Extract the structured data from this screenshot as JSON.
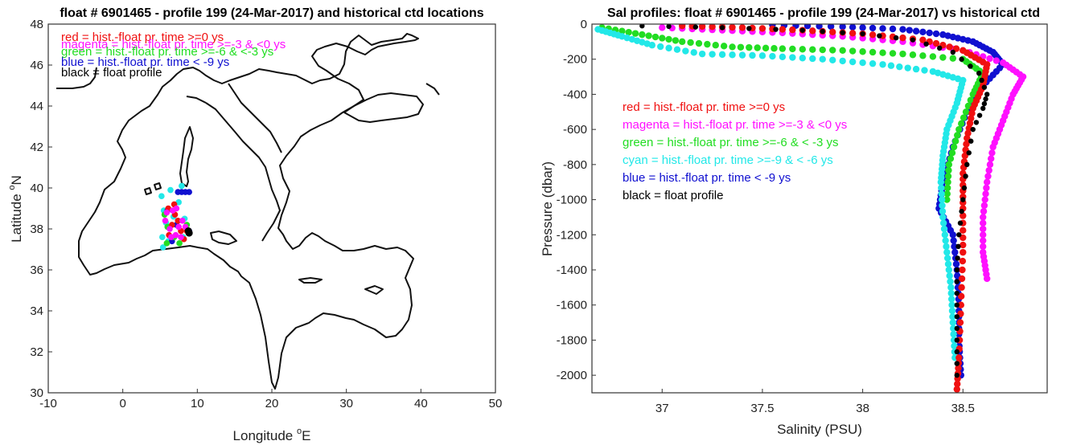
{
  "colors": {
    "red": "#f01010",
    "magenta": "#ff10ff",
    "green": "#22dd22",
    "cyan": "#22e8e8",
    "blue": "#1010d0",
    "black": "#000000"
  },
  "chart_data": [
    {
      "type": "scatter",
      "title": "float # 6901465 - profile 199 (24-Mar-2017) and historical ctd locations",
      "xlabel": "Longitude",
      "xlabel_sup": "o",
      "xlabel_tail": "E",
      "ylabel": "Latitude",
      "ylabel_sup": "o",
      "ylabel_tail": "N",
      "xlim": [
        -10,
        50
      ],
      "ylim": [
        30,
        48
      ],
      "xticks": [
        "-10",
        "0",
        "10",
        "20",
        "30",
        "40",
        "50"
      ],
      "yticks": [
        "30",
        "32",
        "34",
        "36",
        "38",
        "40",
        "42",
        "44",
        "46",
        "48"
      ],
      "legend_position": "top-left",
      "legend": [
        {
          "text": "red = hist.-float pr. time >=0 ys",
          "color": "red"
        },
        {
          "text": "magenta = hist.-float pr. time >=-3 & <0 ys",
          "color": "magenta"
        },
        {
          "text": "green = hist.-float pr. time >=-6 & <-3 ys",
          "color": "green"
        },
        {
          "text": "blue = hist.-float pr. time < -9 ys",
          "color": "blue"
        },
        {
          "text": "black = float profile",
          "color": "black"
        }
      ],
      "series": [
        {
          "color": "cyan",
          "points": [
            [
              5.2,
              39.6
            ],
            [
              5.5,
              38.9
            ],
            [
              5.8,
              38.3
            ],
            [
              6.1,
              37.4
            ],
            [
              5.4,
              37.1
            ],
            [
              6.8,
              38.6
            ],
            [
              7.5,
              39.3
            ],
            [
              8.3,
              38.5
            ],
            [
              8.1,
              37.6
            ],
            [
              6.4,
              39.9
            ],
            [
              7.9,
              40.1
            ],
            [
              5.3,
              37.6
            ]
          ]
        },
        {
          "color": "blue",
          "points": [
            [
              7.4,
              39.8
            ],
            [
              7.9,
              39.8
            ],
            [
              8.4,
              39.8
            ],
            [
              8.9,
              39.8
            ],
            [
              7.2,
              38.2
            ],
            [
              6.6,
              37.4
            ],
            [
              8.9,
              37.9
            ],
            [
              6.0,
              38.9
            ]
          ]
        },
        {
          "color": "green",
          "points": [
            [
              5.9,
              37.3
            ],
            [
              6.9,
              37.6
            ],
            [
              6.0,
              38.1
            ],
            [
              7.6,
              37.3
            ],
            [
              8.6,
              38.2
            ],
            [
              5.6,
              38.7
            ]
          ]
        },
        {
          "color": "red",
          "points": [
            [
              6.2,
              37.7
            ],
            [
              6.6,
              38.2
            ],
            [
              7.0,
              38.7
            ],
            [
              7.4,
              38.4
            ],
            [
              7.8,
              37.9
            ],
            [
              8.2,
              37.5
            ],
            [
              8.6,
              37.9
            ],
            [
              6.1,
              39.0
            ],
            [
              6.9,
              39.2
            ]
          ]
        },
        {
          "color": "magenta",
          "points": [
            [
              5.7,
              38.4
            ],
            [
              6.3,
              38.0
            ],
            [
              6.7,
              38.9
            ],
            [
              7.1,
              37.7
            ],
            [
              7.5,
              38.1
            ],
            [
              8.0,
              38.4
            ],
            [
              7.8,
              37.6
            ],
            [
              6.5,
              37.6
            ],
            [
              5.9,
              38.8
            ],
            [
              7.2,
              39.0
            ],
            [
              8.4,
              38.1
            ]
          ]
        },
        {
          "color": "black",
          "points": [
            [
              8.9,
              37.8
            ],
            [
              8.8,
              37.9
            ]
          ]
        }
      ]
    },
    {
      "type": "scatter",
      "title": "Sal profiles: float # 6901465 - profile 199 (24-Mar-2017) vs historical ctd",
      "xlabel": "Salinity (PSU)",
      "ylabel": "Pressure (dbar)",
      "xlim": [
        36.65,
        38.92
      ],
      "ylim": [
        0,
        2100
      ],
      "y_reversed": true,
      "xticks": [
        "37",
        "37.5",
        "38",
        "38.5"
      ],
      "yticks": [
        "0",
        "-200",
        "-400",
        "-600",
        "-800",
        "-1000",
        "-1200",
        "-1400",
        "-1600",
        "-1800",
        "-2000"
      ],
      "legend_position": "center-left",
      "legend": [
        {
          "text": "red = hist.-float pr. time >=0 ys",
          "color": "red"
        },
        {
          "text": "magenta = hist.-float pr. time >=-3 & <0 ys",
          "color": "magenta"
        },
        {
          "text": "green = hist.-float pr. time >=-6 & < -3 ys",
          "color": "green"
        },
        {
          "text": "cyan = hist.-float pr. time >=-9 & < -6 ys",
          "color": "cyan"
        },
        {
          "text": "blue = hist.-float pr. time < -9 ys",
          "color": "blue"
        },
        {
          "text": "black = float profile",
          "color": "black"
        }
      ],
      "series": [
        {
          "color": "blue",
          "points": [
            [
              37.55,
              5
            ],
            [
              37.9,
              15
            ],
            [
              38.2,
              30
            ],
            [
              38.4,
              60
            ],
            [
              38.55,
              100
            ],
            [
              38.65,
              160
            ],
            [
              38.7,
              230
            ],
            [
              38.6,
              350
            ],
            [
              38.52,
              500
            ],
            [
              38.45,
              700
            ],
            [
              38.4,
              900
            ],
            [
              38.38,
              1050
            ],
            [
              38.45,
              1200
            ],
            [
              38.47,
              1400
            ],
            [
              38.48,
              1600
            ],
            [
              38.48,
              1800
            ],
            [
              38.49,
              2000
            ]
          ]
        },
        {
          "color": "green",
          "points": [
            [
              36.7,
              20
            ],
            [
              36.9,
              60
            ],
            [
              37.1,
              100
            ],
            [
              37.35,
              130
            ],
            [
              37.6,
              140
            ],
            [
              37.9,
              150
            ],
            [
              38.2,
              170
            ],
            [
              38.5,
              200
            ],
            [
              38.6,
              280
            ],
            [
              38.55,
              400
            ],
            [
              38.48,
              600
            ],
            [
              38.43,
              800
            ],
            [
              38.42,
              1000
            ]
          ]
        },
        {
          "color": "cyan",
          "points": [
            [
              36.68,
              30
            ],
            [
              36.8,
              70
            ],
            [
              36.95,
              120
            ],
            [
              37.2,
              170
            ],
            [
              37.5,
              180
            ],
            [
              37.8,
              200
            ],
            [
              38.1,
              230
            ],
            [
              38.35,
              270
            ],
            [
              38.5,
              320
            ],
            [
              38.47,
              450
            ],
            [
              38.42,
              600
            ],
            [
              38.4,
              750
            ],
            [
              38.39,
              900
            ],
            [
              38.4,
              1100
            ],
            [
              38.42,
              1300
            ],
            [
              38.44,
              1500
            ],
            [
              38.45,
              1700
            ],
            [
              38.46,
              1900
            ]
          ]
        },
        {
          "color": "magenta",
          "points": [
            [
              37.0,
              20
            ],
            [
              37.3,
              35
            ],
            [
              37.6,
              50
            ],
            [
              37.9,
              70
            ],
            [
              38.2,
              100
            ],
            [
              38.5,
              150
            ],
            [
              38.7,
              220
            ],
            [
              38.8,
              300
            ],
            [
              38.75,
              400
            ],
            [
              38.7,
              550
            ],
            [
              38.65,
              700
            ],
            [
              38.62,
              900
            ],
            [
              38.6,
              1100
            ],
            [
              38.6,
              1300
            ],
            [
              38.62,
              1450
            ]
          ]
        },
        {
          "color": "red",
          "points": [
            [
              37.1,
              10
            ],
            [
              37.4,
              20
            ],
            [
              37.7,
              35
            ],
            [
              38.0,
              55
            ],
            [
              38.3,
              90
            ],
            [
              38.5,
              150
            ],
            [
              38.62,
              230
            ],
            [
              38.6,
              350
            ],
            [
              38.55,
              480
            ],
            [
              38.52,
              650
            ],
            [
              38.5,
              850
            ],
            [
              38.5,
              1050
            ],
            [
              38.5,
              1300
            ],
            [
              38.49,
              1600
            ],
            [
              38.48,
              1900
            ],
            [
              38.47,
              2080
            ]
          ]
        },
        {
          "color": "black",
          "points": [
            [
              36.9,
              10
            ],
            [
              37.3,
              20
            ],
            [
              37.7,
              35
            ],
            [
              38.0,
              55
            ],
            [
              38.25,
              90
            ],
            [
              38.45,
              160
            ],
            [
              38.58,
              280
            ],
            [
              38.62,
              400
            ],
            [
              38.6,
              480
            ],
            [
              38.55,
              600
            ],
            [
              38.52,
              800
            ],
            [
              38.5,
              1000
            ],
            [
              38.48,
              1200
            ],
            [
              38.47,
              1400
            ],
            [
              38.47,
              1600
            ],
            [
              38.47,
              1800
            ],
            [
              38.47,
              2000
            ]
          ]
        }
      ]
    }
  ]
}
